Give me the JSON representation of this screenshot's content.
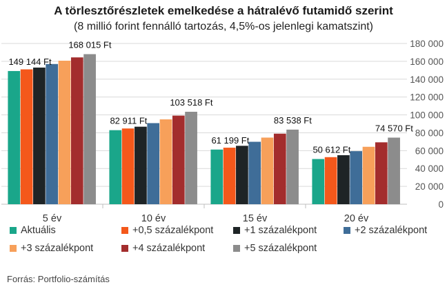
{
  "chart_data": {
    "type": "bar",
    "title": "A törlesztőrészletek emelkedése a hátralévő futamidő szerint",
    "subtitle": "(8 millió forint fennálló tartozás, 4,5%-os jelenlegi kamatszint)",
    "source": "Forrás: Portfolio-számítás",
    "categories": [
      "5 év",
      "10 év",
      "15 év",
      "20 év"
    ],
    "series": [
      {
        "name": "Aktuális",
        "color": "#1aa68a",
        "values": [
          149144,
          82911,
          61199,
          50612
        ]
      },
      {
        "name": "+0,5 százalékpont",
        "color": "#f4581b",
        "values": [
          151000,
          84800,
          63300,
          52700
        ]
      },
      {
        "name": "+1 százalékpont",
        "color": "#1e2426",
        "values": [
          153000,
          86800,
          65400,
          54900
        ]
      },
      {
        "name": "+2 százalékpont",
        "color": "#3f6d98",
        "values": [
          157000,
          90800,
          69900,
          59400
        ]
      },
      {
        "name": "+3 százalékpont",
        "color": "#f7a05a",
        "values": [
          160700,
          95000,
          74600,
          64300
        ]
      },
      {
        "name": "+4 százalékpont",
        "color": "#a32d2d",
        "values": [
          164400,
          99200,
          79000,
          69300
        ]
      },
      {
        "name": "+5 százalékpont",
        "color": "#8c8c8c",
        "values": [
          168015,
          103518,
          83538,
          74570
        ]
      }
    ],
    "data_labels": [
      {
        "text": "149 144 Ft",
        "category": 0,
        "series": 0
      },
      {
        "text": "168 015 Ft",
        "category": 0,
        "series": 6
      },
      {
        "text": "82 911 Ft",
        "category": 1,
        "series": 0
      },
      {
        "text": "103 518 Ft",
        "category": 1,
        "series": 6
      },
      {
        "text": "61 199 Ft",
        "category": 2,
        "series": 0
      },
      {
        "text": "83 538 Ft",
        "category": 2,
        "series": 6
      },
      {
        "text": "50 612 Ft",
        "category": 3,
        "series": 0
      },
      {
        "text": "74 570 Ft",
        "category": 3,
        "series": 6
      }
    ],
    "y_ticks": [
      "0",
      "20 000",
      "40 000",
      "60 000",
      "80 000",
      "100 000",
      "120 000",
      "140 000",
      "160 000",
      "180 000"
    ],
    "ylim": [
      0,
      180000
    ],
    "y_axis_side": "right",
    "grid": true,
    "legend_position": "bottom"
  }
}
